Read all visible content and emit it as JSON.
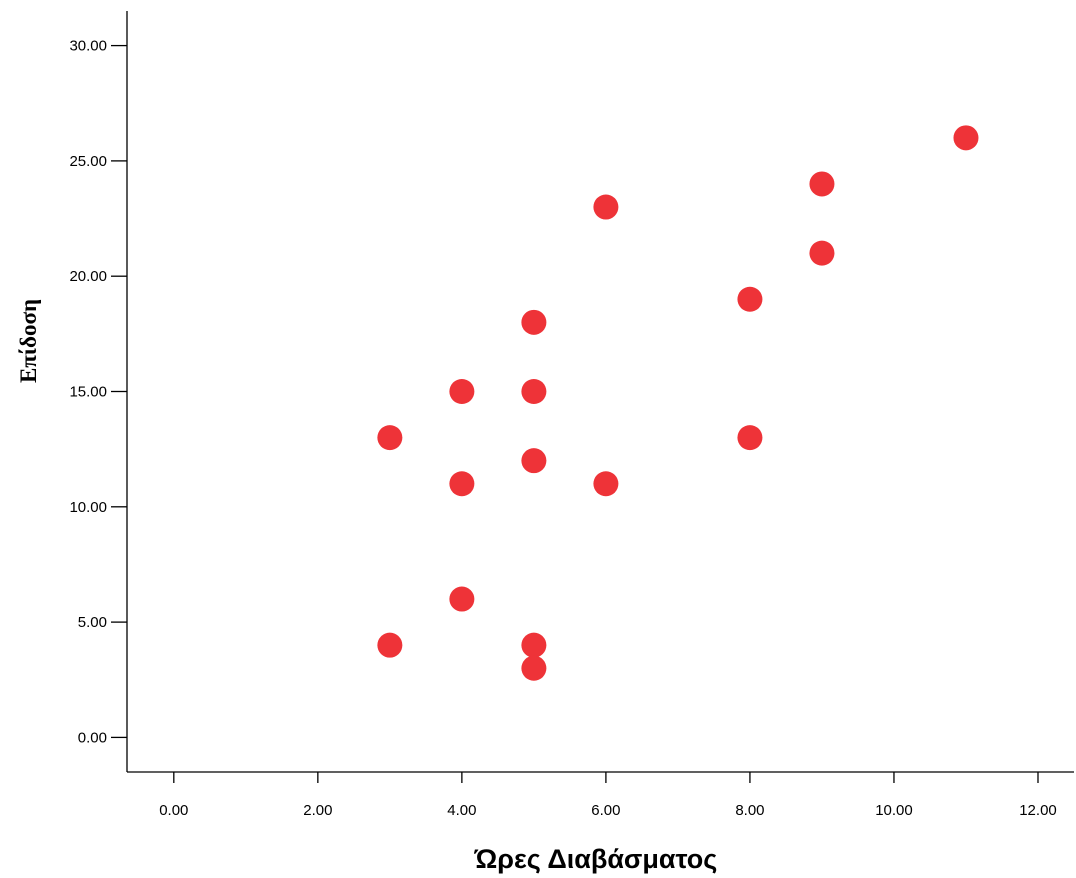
{
  "chart_data": {
    "type": "scatter",
    "xlabel": "Ώρες Διαβάσματος",
    "ylabel": "Επίδοση",
    "xlim": [
      -0.65,
      12.5
    ],
    "ylim": [
      -1.5,
      31.5
    ],
    "x_ticks": [
      "0.00",
      "2.00",
      "4.00",
      "6.00",
      "8.00",
      "10.00",
      "12.00"
    ],
    "y_ticks": [
      "0.00",
      "5.00",
      "10.00",
      "15.00",
      "20.00",
      "25.00",
      "30.00"
    ],
    "x_tick_values": [
      0,
      2,
      4,
      6,
      8,
      10,
      12
    ],
    "y_tick_values": [
      0,
      5,
      10,
      15,
      20,
      25,
      30
    ],
    "grid": false,
    "marker_color": "#ee3338",
    "points": [
      {
        "x": 3,
        "y": 13
      },
      {
        "x": 3,
        "y": 4
      },
      {
        "x": 4,
        "y": 15
      },
      {
        "x": 4,
        "y": 11
      },
      {
        "x": 4,
        "y": 6
      },
      {
        "x": 5,
        "y": 18
      },
      {
        "x": 5,
        "y": 15
      },
      {
        "x": 5,
        "y": 12
      },
      {
        "x": 5,
        "y": 4
      },
      {
        "x": 5,
        "y": 3
      },
      {
        "x": 6,
        "y": 23
      },
      {
        "x": 6,
        "y": 11
      },
      {
        "x": 8,
        "y": 19
      },
      {
        "x": 8,
        "y": 13
      },
      {
        "x": 9,
        "y": 24
      },
      {
        "x": 9,
        "y": 21
      },
      {
        "x": 11,
        "y": 26
      }
    ]
  }
}
